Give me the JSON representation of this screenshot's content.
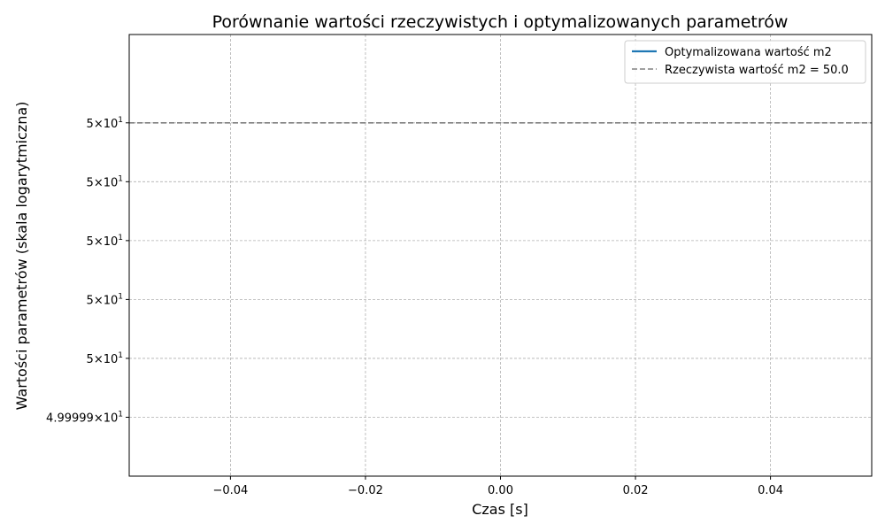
{
  "chart_data": {
    "type": "line",
    "title": "Porównanie wartości rzeczywistych i optymalizowanych parametrów",
    "xlabel": "Czas [s]",
    "ylabel": "Wartości parametrów (skala logarytmiczna)",
    "yscale": "log",
    "xlim": [
      -0.055,
      0.055
    ],
    "ylim": [
      49.99988,
      50.00003
    ],
    "x_ticks": [
      {
        "value": -0.04,
        "label": "−0.04"
      },
      {
        "value": -0.02,
        "label": "−0.02"
      },
      {
        "value": 0.0,
        "label": "0.00"
      },
      {
        "value": 0.02,
        "label": "0.02"
      },
      {
        "value": 0.04,
        "label": "0.04"
      }
    ],
    "y_ticks": [
      {
        "value": 50.0,
        "mantissa": "5",
        "base": "10",
        "exponent": "1"
      },
      {
        "value": 49.99998,
        "mantissa": "5",
        "base": "10",
        "exponent": "1"
      },
      {
        "value": 49.99996,
        "mantissa": "5",
        "base": "10",
        "exponent": "1"
      },
      {
        "value": 49.99994,
        "mantissa": "5",
        "base": "10",
        "exponent": "1"
      },
      {
        "value": 49.99992,
        "mantissa": "5",
        "base": "10",
        "exponent": "1"
      },
      {
        "value": 49.9999,
        "mantissa": "4.99999",
        "base": "10",
        "exponent": "1"
      }
    ],
    "grid": true,
    "legend_position": "upper right",
    "series": [
      {
        "name": "Optymalizowana wartość m2",
        "style": "solid",
        "color": "#1f77b4",
        "x": [
          0.0
        ],
        "y": [
          50.0
        ]
      },
      {
        "name": "Rzeczywista wartość m2 = 50.0",
        "style": "dashed",
        "color": "#808080",
        "hline": 50.0
      }
    ]
  }
}
